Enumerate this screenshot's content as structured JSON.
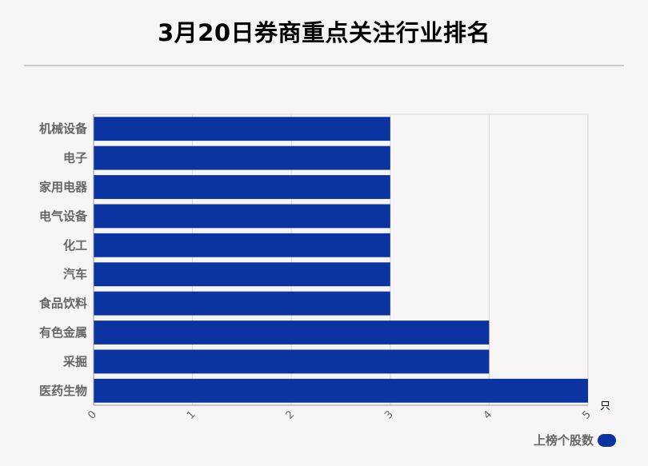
{
  "title": "3月20日券商重点关注行业排名",
  "legend": {
    "label": "上榜个股数",
    "color": "#0c34a0"
  },
  "chart_data": {
    "type": "bar",
    "orientation": "horizontal",
    "title": "3月20日券商重点关注行业排名",
    "categories": [
      "机械设备",
      "电子",
      "家用电器",
      "电气设备",
      "化工",
      "汽车",
      "食品饮料",
      "有色金属",
      "采掘",
      "医药生物"
    ],
    "series": [
      {
        "name": "上榜个股数",
        "values": [
          3,
          3,
          3,
          3,
          3,
          3,
          3,
          4,
          4,
          5
        ],
        "color": "#0c34a0"
      }
    ],
    "xlim": [
      0,
      5
    ],
    "xticks": [
      "0",
      "1",
      "2",
      "3",
      "4",
      "5"
    ],
    "unit": "只",
    "grid": true,
    "legend_position": "bottom-right"
  }
}
